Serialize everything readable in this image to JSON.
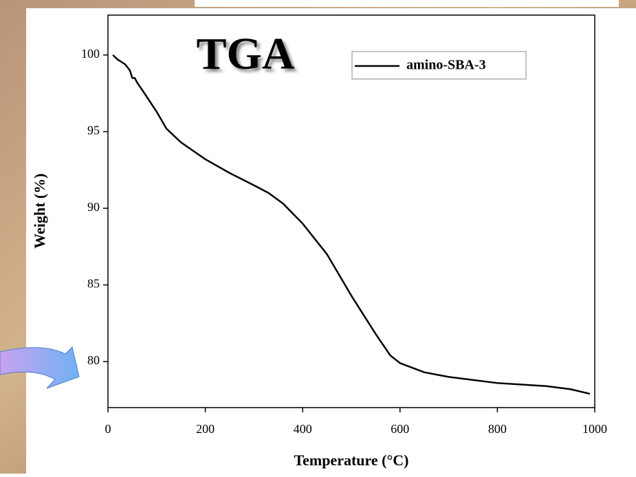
{
  "chart_data": {
    "type": "line",
    "annotation": "TGA",
    "xlabel": "Temperature (°C)",
    "ylabel": "Weight (%)",
    "x": [
      10,
      20,
      35,
      45,
      50,
      55,
      60,
      75,
      100,
      120,
      150,
      200,
      250,
      300,
      330,
      360,
      400,
      450,
      500,
      550,
      580,
      600,
      650,
      700,
      800,
      900,
      950,
      990
    ],
    "series": [
      {
        "name": "amino-SBA-3",
        "color": "#000000",
        "values": [
          100,
          99.7,
          99.4,
          99.0,
          98.5,
          98.5,
          98.2,
          97.5,
          96.3,
          95.2,
          94.3,
          93.2,
          92.3,
          91.5,
          91.0,
          90.3,
          89.0,
          87.0,
          84.3,
          81.8,
          80.4,
          79.9,
          79.3,
          79.0,
          78.6,
          78.4,
          78.2,
          77.9
        ]
      }
    ],
    "xlim": [
      0,
      1000
    ],
    "xticks": [
      0,
      200,
      400,
      600,
      800,
      1000
    ],
    "ylim": [
      77,
      102.6
    ],
    "yticks": [
      80,
      85,
      90,
      95,
      100
    ],
    "legend": "upper right"
  }
}
